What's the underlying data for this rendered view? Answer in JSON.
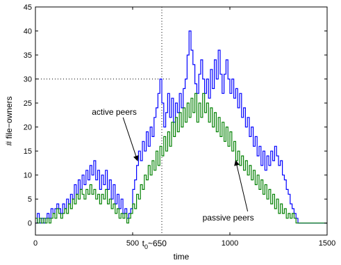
{
  "chart_data": {
    "type": "line",
    "title": "",
    "xlabel": "time",
    "ylabel": "# file−owners",
    "xlim": [
      0,
      1500
    ],
    "ylim": [
      0,
      45
    ],
    "y_axis_bottom_padding": -2.5,
    "xticks": [
      0,
      500,
      1000,
      1500
    ],
    "yticks": [
      0,
      5,
      10,
      15,
      20,
      25,
      30,
      35,
      40,
      45
    ],
    "grid": false,
    "series": [
      {
        "name": "active peers",
        "color": "#0000ff",
        "points": [
          [
            0,
            0
          ],
          [
            10,
            2
          ],
          [
            20,
            0
          ],
          [
            30,
            1
          ],
          [
            40,
            0
          ],
          [
            50,
            1
          ],
          [
            60,
            2
          ],
          [
            70,
            1
          ],
          [
            80,
            3
          ],
          [
            90,
            2
          ],
          [
            100,
            3
          ],
          [
            110,
            4
          ],
          [
            120,
            3
          ],
          [
            130,
            2
          ],
          [
            140,
            4
          ],
          [
            150,
            3
          ],
          [
            160,
            5
          ],
          [
            170,
            4
          ],
          [
            180,
            6
          ],
          [
            190,
            5
          ],
          [
            200,
            8
          ],
          [
            210,
            6
          ],
          [
            220,
            9
          ],
          [
            230,
            7
          ],
          [
            240,
            10
          ],
          [
            250,
            8
          ],
          [
            260,
            11
          ],
          [
            270,
            9
          ],
          [
            280,
            12
          ],
          [
            290,
            10
          ],
          [
            300,
            13
          ],
          [
            310,
            9
          ],
          [
            320,
            11
          ],
          [
            330,
            7
          ],
          [
            340,
            10
          ],
          [
            350,
            8
          ],
          [
            360,
            11
          ],
          [
            370,
            7
          ],
          [
            380,
            9
          ],
          [
            390,
            5
          ],
          [
            400,
            8
          ],
          [
            410,
            4
          ],
          [
            420,
            6
          ],
          [
            430,
            3
          ],
          [
            440,
            5
          ],
          [
            450,
            2
          ],
          [
            460,
            3
          ],
          [
            470,
            1
          ],
          [
            480,
            2
          ],
          [
            490,
            3
          ],
          [
            500,
            7
          ],
          [
            510,
            9
          ],
          [
            520,
            12
          ],
          [
            530,
            15
          ],
          [
            540,
            13
          ],
          [
            550,
            17
          ],
          [
            560,
            15
          ],
          [
            570,
            19
          ],
          [
            580,
            16
          ],
          [
            590,
            20
          ],
          [
            600,
            18
          ],
          [
            610,
            22
          ],
          [
            620,
            24
          ],
          [
            630,
            27
          ],
          [
            640,
            30
          ],
          [
            650,
            25
          ],
          [
            660,
            20
          ],
          [
            670,
            23
          ],
          [
            680,
            27
          ],
          [
            690,
            22
          ],
          [
            700,
            26
          ],
          [
            710,
            21
          ],
          [
            720,
            25
          ],
          [
            730,
            23
          ],
          [
            740,
            27
          ],
          [
            750,
            24
          ],
          [
            760,
            28
          ],
          [
            770,
            30
          ],
          [
            780,
            35
          ],
          [
            790,
            40
          ],
          [
            800,
            36
          ],
          [
            810,
            33
          ],
          [
            820,
            29
          ],
          [
            830,
            27
          ],
          [
            840,
            31
          ],
          [
            850,
            34
          ],
          [
            860,
            30
          ],
          [
            870,
            27
          ],
          [
            880,
            30
          ],
          [
            890,
            26
          ],
          [
            900,
            32
          ],
          [
            910,
            28
          ],
          [
            920,
            34
          ],
          [
            930,
            30
          ],
          [
            940,
            36
          ],
          [
            950,
            31
          ],
          [
            960,
            27
          ],
          [
            970,
            31
          ],
          [
            980,
            34
          ],
          [
            990,
            30
          ],
          [
            1000,
            27
          ],
          [
            1010,
            30
          ],
          [
            1020,
            26
          ],
          [
            1030,
            28
          ],
          [
            1040,
            24
          ],
          [
            1050,
            27
          ],
          [
            1060,
            22
          ],
          [
            1070,
            24
          ],
          [
            1080,
            20
          ],
          [
            1090,
            22
          ],
          [
            1100,
            18
          ],
          [
            1110,
            20
          ],
          [
            1120,
            16
          ],
          [
            1130,
            18
          ],
          [
            1140,
            14
          ],
          [
            1150,
            16
          ],
          [
            1160,
            12
          ],
          [
            1170,
            15
          ],
          [
            1180,
            11
          ],
          [
            1190,
            14
          ],
          [
            1200,
            12
          ],
          [
            1210,
            15
          ],
          [
            1220,
            13
          ],
          [
            1230,
            16
          ],
          [
            1240,
            14
          ],
          [
            1250,
            12
          ],
          [
            1260,
            13
          ],
          [
            1270,
            10
          ],
          [
            1280,
            9
          ],
          [
            1290,
            7
          ],
          [
            1300,
            6
          ],
          [
            1310,
            4
          ],
          [
            1320,
            3
          ],
          [
            1330,
            2
          ],
          [
            1340,
            1
          ],
          [
            1350,
            0
          ],
          [
            1400,
            0
          ],
          [
            1500,
            0
          ]
        ]
      },
      {
        "name": "passive peers",
        "color": "#008000",
        "points": [
          [
            0,
            1
          ],
          [
            10,
            0
          ],
          [
            20,
            1
          ],
          [
            30,
            0
          ],
          [
            40,
            1
          ],
          [
            50,
            0
          ],
          [
            60,
            1
          ],
          [
            70,
            0
          ],
          [
            80,
            1
          ],
          [
            90,
            2
          ],
          [
            100,
            1
          ],
          [
            110,
            3
          ],
          [
            120,
            2
          ],
          [
            130,
            1
          ],
          [
            140,
            2
          ],
          [
            150,
            3
          ],
          [
            160,
            2
          ],
          [
            170,
            4
          ],
          [
            180,
            3
          ],
          [
            190,
            5
          ],
          [
            200,
            4
          ],
          [
            210,
            6
          ],
          [
            220,
            5
          ],
          [
            230,
            7
          ],
          [
            240,
            6
          ],
          [
            250,
            5
          ],
          [
            260,
            7
          ],
          [
            270,
            6
          ],
          [
            280,
            8
          ],
          [
            290,
            6
          ],
          [
            300,
            7
          ],
          [
            310,
            5
          ],
          [
            320,
            6
          ],
          [
            330,
            4
          ],
          [
            340,
            6
          ],
          [
            350,
            5
          ],
          [
            360,
            7
          ],
          [
            370,
            4
          ],
          [
            380,
            5
          ],
          [
            390,
            3
          ],
          [
            400,
            4
          ],
          [
            410,
            2
          ],
          [
            420,
            3
          ],
          [
            430,
            1
          ],
          [
            440,
            2
          ],
          [
            450,
            1
          ],
          [
            460,
            2
          ],
          [
            470,
            0
          ],
          [
            480,
            1
          ],
          [
            490,
            2
          ],
          [
            500,
            4
          ],
          [
            510,
            3
          ],
          [
            520,
            6
          ],
          [
            530,
            5
          ],
          [
            540,
            8
          ],
          [
            550,
            7
          ],
          [
            560,
            10
          ],
          [
            570,
            9
          ],
          [
            580,
            12
          ],
          [
            590,
            10
          ],
          [
            600,
            13
          ],
          [
            610,
            11
          ],
          [
            620,
            15
          ],
          [
            630,
            12
          ],
          [
            640,
            16
          ],
          [
            650,
            14
          ],
          [
            660,
            18
          ],
          [
            670,
            15
          ],
          [
            680,
            19
          ],
          [
            690,
            16
          ],
          [
            700,
            21
          ],
          [
            710,
            18
          ],
          [
            720,
            22
          ],
          [
            730,
            19
          ],
          [
            740,
            23
          ],
          [
            750,
            20
          ],
          [
            760,
            24
          ],
          [
            770,
            21
          ],
          [
            780,
            25
          ],
          [
            790,
            22
          ],
          [
            800,
            26
          ],
          [
            810,
            23
          ],
          [
            820,
            27
          ],
          [
            830,
            21
          ],
          [
            840,
            25
          ],
          [
            850,
            22
          ],
          [
            860,
            27
          ],
          [
            870,
            23
          ],
          [
            880,
            25
          ],
          [
            890,
            21
          ],
          [
            900,
            24
          ],
          [
            910,
            20
          ],
          [
            920,
            23
          ],
          [
            930,
            19
          ],
          [
            940,
            22
          ],
          [
            950,
            18
          ],
          [
            960,
            21
          ],
          [
            970,
            17
          ],
          [
            980,
            20
          ],
          [
            990,
            16
          ],
          [
            1000,
            19
          ],
          [
            1010,
            15
          ],
          [
            1020,
            17
          ],
          [
            1030,
            13
          ],
          [
            1040,
            15
          ],
          [
            1050,
            12
          ],
          [
            1060,
            14
          ],
          [
            1070,
            11
          ],
          [
            1080,
            13
          ],
          [
            1090,
            10
          ],
          [
            1100,
            12
          ],
          [
            1110,
            9
          ],
          [
            1120,
            11
          ],
          [
            1130,
            8
          ],
          [
            1140,
            10
          ],
          [
            1150,
            7
          ],
          [
            1160,
            9
          ],
          [
            1170,
            6
          ],
          [
            1180,
            8
          ],
          [
            1190,
            5
          ],
          [
            1200,
            7
          ],
          [
            1210,
            4
          ],
          [
            1220,
            6
          ],
          [
            1230,
            3
          ],
          [
            1240,
            5
          ],
          [
            1250,
            2
          ],
          [
            1260,
            4
          ],
          [
            1270,
            2
          ],
          [
            1280,
            3
          ],
          [
            1290,
            1
          ],
          [
            1300,
            2
          ],
          [
            1310,
            1
          ],
          [
            1320,
            2
          ],
          [
            1330,
            1
          ],
          [
            1340,
            0
          ],
          [
            1350,
            0
          ],
          [
            1400,
            0
          ],
          [
            1500,
            0
          ]
        ]
      }
    ],
    "reference_lines": [
      {
        "orientation": "vertical",
        "value": 650,
        "style": "dotted"
      },
      {
        "orientation": "horizontal",
        "value": 30,
        "x_end": 700,
        "style": "dotted"
      }
    ],
    "annotations": [
      {
        "text": "active peers",
        "at": [
          540,
          23
        ],
        "points_to": [
          525,
          13
        ]
      },
      {
        "text": "passive peers",
        "at": [
          1020,
          1
        ],
        "points_to": [
          1030,
          13
        ]
      },
      {
        "text_base": "t",
        "text_sub": "0",
        "text_tail": "~650",
        "at": [
          670,
          -5
        ]
      }
    ]
  }
}
